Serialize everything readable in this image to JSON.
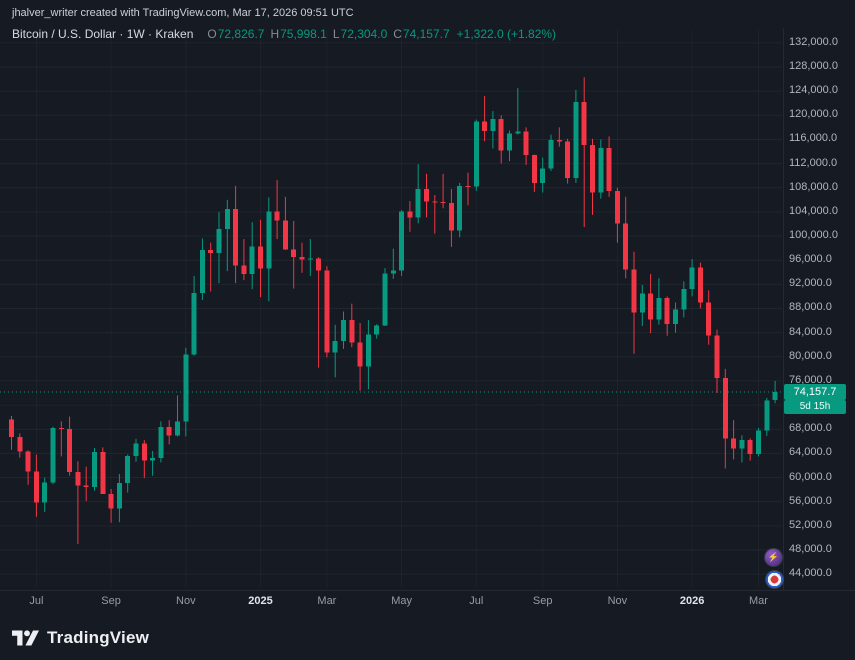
{
  "attribution": "jhalver_writer created with TradingView.com, Mar 17, 2026 09:51 UTC",
  "header": {
    "title": "Bitcoin / U.S. Dollar · 1W · Kraken",
    "ohlc": [
      {
        "key": "O",
        "value": "72,826.7"
      },
      {
        "key": "H",
        "value": "75,998.1"
      },
      {
        "key": "L",
        "value": "72,304.0"
      },
      {
        "key": "C",
        "value": "74,157.7"
      }
    ],
    "change": "+1,322.0 (+1.82%)"
  },
  "current_price": {
    "label": "74,157.7",
    "value": 74157.7,
    "countdown": "5d 15h"
  },
  "footer": {
    "brand": "TradingView"
  },
  "colors": {
    "up": "#089981",
    "down": "#f23645",
    "background": "#151a23",
    "axis_text": "#b2b5be"
  },
  "chart_data": {
    "type": "candlestick",
    "title": "Bitcoin / U.S. Dollar",
    "exchange": "Kraken",
    "interval": "1W",
    "up_color": "#089981",
    "down_color": "#f23645",
    "grid": "faint",
    "y_min": 41700,
    "y_max": 133800,
    "y_ticks": [
      "132,000.0",
      "128,000.0",
      "124,000.0",
      "120,000.0",
      "116,000.0",
      "112,000.0",
      "108,000.0",
      "104,000.0",
      "100,000.0",
      "96,000.0",
      "92,000.0",
      "88,000.0",
      "84,000.0",
      "80,000.0",
      "76,000.0",
      "72,000.0",
      "68,000.0",
      "64,000.0",
      "60,000.0",
      "56,000.0",
      "52,000.0",
      "48,000.0",
      "44,000.0"
    ],
    "x_ticks": [
      {
        "label": "Jul",
        "index": 3,
        "major": false
      },
      {
        "label": "Sep",
        "index": 12,
        "major": false
      },
      {
        "label": "Nov",
        "index": 21,
        "major": false
      },
      {
        "label": "2025",
        "index": 30,
        "major": true
      },
      {
        "label": "Mar",
        "index": 38,
        "major": false
      },
      {
        "label": "May",
        "index": 47,
        "major": false
      },
      {
        "label": "Jul",
        "index": 56,
        "major": false
      },
      {
        "label": "Sep",
        "index": 64,
        "major": false
      },
      {
        "label": "Nov",
        "index": 73,
        "major": false
      },
      {
        "label": "2026",
        "index": 82,
        "major": true
      },
      {
        "label": "Mar",
        "index": 90,
        "major": false
      }
    ],
    "candles": [
      [
        69600,
        70200,
        64600,
        66700
      ],
      [
        66700,
        67300,
        63300,
        64300
      ],
      [
        64300,
        64500,
        58800,
        61000
      ],
      [
        61000,
        63800,
        53500,
        55900
      ],
      [
        55900,
        60000,
        54300,
        59200
      ],
      [
        59200,
        68400,
        58900,
        68200
      ],
      [
        68200,
        69300,
        63500,
        68000
      ],
      [
        68000,
        70100,
        60300,
        60900
      ],
      [
        60900,
        62700,
        49000,
        58700
      ],
      [
        58700,
        61800,
        56100,
        58400
      ],
      [
        58400,
        64900,
        57800,
        64200
      ],
      [
        64200,
        65000,
        57700,
        57300
      ],
      [
        57300,
        58100,
        52500,
        54900
      ],
      [
        54900,
        60600,
        52600,
        59100
      ],
      [
        59100,
        63800,
        57500,
        63600
      ],
      [
        63600,
        66400,
        62600,
        65600
      ],
      [
        65600,
        66200,
        59900,
        62800
      ],
      [
        62800,
        64400,
        60300,
        63200
      ],
      [
        63200,
        69300,
        62500,
        68400
      ],
      [
        68400,
        69500,
        65500,
        67000
      ],
      [
        67000,
        73600,
        66800,
        69300
      ],
      [
        69300,
        81500,
        66800,
        80400
      ],
      [
        80400,
        93400,
        80200,
        90600
      ],
      [
        90600,
        99600,
        89400,
        97700
      ],
      [
        97700,
        98900,
        90800,
        97200
      ],
      [
        97200,
        104000,
        92200,
        101200
      ],
      [
        101200,
        106000,
        94200,
        104500
      ],
      [
        104500,
        108300,
        92200,
        95100
      ],
      [
        95100,
        99500,
        92700,
        93700
      ],
      [
        93700,
        102300,
        91200,
        98300
      ],
      [
        98300,
        102700,
        89900,
        94600
      ],
      [
        94600,
        106400,
        89200,
        104100
      ],
      [
        104100,
        109300,
        99500,
        102600
      ],
      [
        102600,
        106500,
        97700,
        97800
      ],
      [
        97800,
        102500,
        91300,
        96500
      ],
      [
        96500,
        98900,
        93900,
        96100
      ],
      [
        96100,
        99500,
        93400,
        96300
      ],
      [
        96300,
        96500,
        78200,
        94300
      ],
      [
        94300,
        95000,
        79900,
        80700
      ],
      [
        80700,
        85300,
        76600,
        82600
      ],
      [
        82600,
        87500,
        81300,
        86100
      ],
      [
        86100,
        88800,
        81600,
        82400
      ],
      [
        82400,
        85600,
        74400,
        78400
      ],
      [
        78400,
        86100,
        74600,
        83700
      ],
      [
        83700,
        85400,
        83000,
        85200
      ],
      [
        85200,
        94700,
        85100,
        93800
      ],
      [
        93800,
        97900,
        92900,
        94300
      ],
      [
        94300,
        104300,
        93400,
        104100
      ],
      [
        104100,
        105800,
        100700,
        103100
      ],
      [
        103100,
        111900,
        102100,
        107800
      ],
      [
        107800,
        110300,
        103100,
        105700
      ],
      [
        105700,
        106800,
        100400,
        105600
      ],
      [
        105600,
        110300,
        104600,
        105500
      ],
      [
        105500,
        107800,
        98200,
        100900
      ],
      [
        100900,
        108800,
        99800,
        108300
      ],
      [
        108300,
        110500,
        105100,
        108200
      ],
      [
        108200,
        119300,
        107500,
        119000
      ],
      [
        119000,
        123200,
        115700,
        117400
      ],
      [
        117400,
        120700,
        114500,
        119400
      ],
      [
        119400,
        120000,
        112000,
        114200
      ],
      [
        114200,
        117500,
        112400,
        117000
      ],
      [
        117000,
        124500,
        116800,
        117300
      ],
      [
        117300,
        118000,
        111800,
        113400
      ],
      [
        113400,
        113500,
        107300,
        108800
      ],
      [
        108800,
        113000,
        107200,
        111200
      ],
      [
        111200,
        116800,
        110800,
        115900
      ],
      [
        115900,
        118000,
        114800,
        115700
      ],
      [
        115700,
        116100,
        108700,
        109600
      ],
      [
        109600,
        124200,
        108800,
        122200
      ],
      [
        122200,
        126300,
        101500,
        115100
      ],
      [
        115100,
        116100,
        103500,
        107200
      ],
      [
        107200,
        116000,
        106200,
        114600
      ],
      [
        114600,
        116500,
        106500,
        107500
      ],
      [
        107500,
        108000,
        98900,
        102100
      ],
      [
        102100,
        106500,
        93000,
        94500
      ],
      [
        94500,
        97400,
        80500,
        87300
      ],
      [
        87300,
        91900,
        85100,
        90500
      ],
      [
        90500,
        93700,
        83900,
        86200
      ],
      [
        86200,
        93000,
        85300,
        89700
      ],
      [
        89700,
        90000,
        83500,
        85400
      ],
      [
        85400,
        89000,
        84000,
        87800
      ],
      [
        87800,
        92500,
        86500,
        91200
      ],
      [
        91200,
        96200,
        90000,
        94800
      ],
      [
        94800,
        95600,
        88000,
        89000
      ],
      [
        89000,
        91000,
        82000,
        83500
      ],
      [
        83500,
        84500,
        74000,
        76500
      ],
      [
        76500,
        78000,
        61500,
        66500
      ],
      [
        66500,
        69500,
        63000,
        64800
      ],
      [
        64800,
        67000,
        62500,
        66200
      ],
      [
        66200,
        66500,
        62800,
        63900
      ],
      [
        63900,
        68200,
        63500,
        67800
      ],
      [
        67800,
        73200,
        66900,
        72800
      ],
      [
        72826.7,
        75998.1,
        72304.0,
        74157.7
      ]
    ]
  }
}
